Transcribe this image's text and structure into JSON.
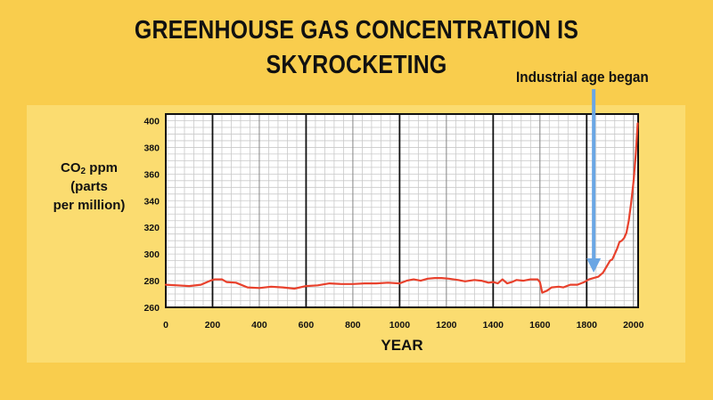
{
  "title_lines": [
    "GREENHOUSE GAS CONCENTRATION IS",
    "SKYROCKETING"
  ],
  "annotation": {
    "text": "Industrial age began",
    "x": 1830
  },
  "colors": {
    "background": "#f9cd4d",
    "panel": "#fbdc70",
    "line": "#e8412c",
    "arrow": "#6aa6e4",
    "grid": "#c9c9c9"
  },
  "chart_data": {
    "type": "line",
    "title": "GREENHOUSE GAS CONCENTRATION IS SKYROCKETING",
    "xlabel": "YEAR",
    "ylabel": {
      "main": "CO",
      "sub": "2",
      "rest": " ppm",
      "line2": "(parts",
      "line3": "per million)"
    },
    "xlim": [
      0,
      2020
    ],
    "ylim": [
      260,
      405
    ],
    "x_ticks": [
      0,
      200,
      400,
      600,
      800,
      1000,
      1200,
      1400,
      1600,
      1800,
      2000
    ],
    "y_ticks": [
      260,
      280,
      300,
      320,
      340,
      360,
      380,
      400
    ],
    "grid": true,
    "series": [
      {
        "x": [
          0,
          50,
          100,
          150,
          190,
          210,
          240,
          260,
          300,
          350,
          400,
          450,
          500,
          550,
          600,
          650,
          700,
          750,
          800,
          850,
          900,
          950,
          1000,
          1030,
          1060,
          1090,
          1120,
          1150,
          1180,
          1210,
          1250,
          1280,
          1320,
          1350,
          1380,
          1400,
          1420,
          1440,
          1460,
          1480,
          1500,
          1530,
          1560,
          1590,
          1600,
          1610,
          1630,
          1650,
          1680,
          1700,
          1730,
          1760,
          1790,
          1810,
          1830,
          1850,
          1870,
          1890,
          1900,
          1910,
          1930,
          1940,
          1950,
          1960,
          1970,
          1980,
          1990,
          2000,
          2010,
          2018
        ],
        "y": [
          277,
          276.5,
          276,
          277,
          280,
          281,
          281,
          279,
          278.5,
          275,
          274.5,
          275.5,
          275,
          274,
          276,
          276.5,
          278,
          277.5,
          277.5,
          278,
          278,
          278.5,
          278,
          280,
          281,
          280,
          281.5,
          282,
          282,
          281.5,
          280.5,
          279.5,
          280.5,
          280,
          278.5,
          279,
          278,
          281,
          278,
          279,
          280.5,
          280,
          281,
          281,
          279,
          271,
          272.5,
          275,
          275.5,
          275,
          277,
          277,
          279,
          281,
          282,
          283,
          286,
          292,
          295,
          296,
          304,
          309,
          310,
          312,
          316,
          325,
          338,
          354,
          375,
          398
        ]
      }
    ]
  }
}
